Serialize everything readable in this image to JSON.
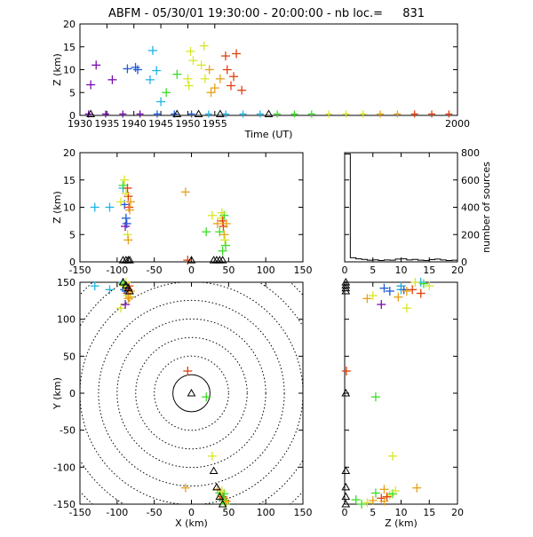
{
  "title": {
    "station": "ABFM",
    "date": "05/30/01",
    "time_range": "19:30:00 - 20:00:00",
    "count_label": "nb loc.=",
    "count": "831"
  },
  "colors": {
    "purple": "#7a0bb0",
    "blue": "#1e5ad8",
    "cyan": "#20b4e6",
    "green": "#3cdc28",
    "yellow": "#d8e628",
    "orange": "#e8a018",
    "red": "#e04010"
  },
  "chart_data": [
    {
      "id": "time_height",
      "type": "scatter",
      "xlabel": "Time (UT)",
      "ylabel": "Z (km)",
      "xlim": [
        1930,
        2000
      ],
      "ylim": [
        0,
        20
      ],
      "xticks": [
        1930,
        1935,
        1940,
        1945,
        1950,
        1955,
        2000
      ],
      "yticks": [
        0,
        5,
        10,
        15,
        20
      ],
      "points": [
        {
          "x": 1932,
          "y": 6.7,
          "c": "purple"
        },
        {
          "x": 1933,
          "y": 11,
          "c": "purple"
        },
        {
          "x": 1936,
          "y": 7.8,
          "c": "purple"
        },
        {
          "x": 1938.8,
          "y": 10.2,
          "c": "blue"
        },
        {
          "x": 1940.3,
          "y": 10.5,
          "c": "blue"
        },
        {
          "x": 1940.7,
          "y": 10,
          "c": "blue"
        },
        {
          "x": 1943,
          "y": 7.8,
          "c": "cyan"
        },
        {
          "x": 1943.5,
          "y": 14.2,
          "c": "cyan"
        },
        {
          "x": 1944.2,
          "y": 9.8,
          "c": "cyan"
        },
        {
          "x": 1945,
          "y": 3,
          "c": "cyan"
        },
        {
          "x": 1946,
          "y": 5,
          "c": "green"
        },
        {
          "x": 1948,
          "y": 9,
          "c": "green"
        },
        {
          "x": 1950,
          "y": 8,
          "c": "yellow"
        },
        {
          "x": 1950.5,
          "y": 14,
          "c": "yellow"
        },
        {
          "x": 1951,
          "y": 12,
          "c": "yellow"
        },
        {
          "x": 1950.2,
          "y": 6.5,
          "c": "yellow"
        },
        {
          "x": 1952.5,
          "y": 11,
          "c": "yellow"
        },
        {
          "x": 1953,
          "y": 15.2,
          "c": "yellow"
        },
        {
          "x": 1953.2,
          "y": 8,
          "c": "yellow"
        },
        {
          "x": 1954,
          "y": 10,
          "c": "orange"
        },
        {
          "x": 1954.3,
          "y": 5,
          "c": "orange"
        },
        {
          "x": 1955,
          "y": 6,
          "c": "orange"
        },
        {
          "x": 1956,
          "y": 8,
          "c": "orange"
        },
        {
          "x": 1957,
          "y": 13,
          "c": "red"
        },
        {
          "x": 1957.3,
          "y": 10,
          "c": "red"
        },
        {
          "x": 1958,
          "y": 6.5,
          "c": "red"
        },
        {
          "x": 1958.5,
          "y": 8.5,
          "c": "red"
        },
        {
          "x": 1959,
          "y": 13.5,
          "c": "red"
        },
        {
          "x": 1960,
          "y": 5.5,
          "c": "red"
        }
      ],
      "ground_colors": [
        "purple",
        "purple",
        "purple",
        "purple",
        "blue",
        "blue",
        "blue",
        "cyan",
        "cyan",
        "cyan",
        "cyan",
        "green",
        "green",
        "green",
        "yellow",
        "yellow",
        "yellow",
        "orange",
        "orange",
        "red",
        "red",
        "red"
      ],
      "triangles_x": [
        1932,
        1948,
        1952,
        1956,
        1965
      ]
    },
    {
      "id": "x_height",
      "type": "scatter",
      "xlim": [
        -150,
        150
      ],
      "ylim": [
        0,
        20
      ],
      "xticks": [
        -150,
        -100,
        -50,
        0,
        50,
        100,
        150
      ],
      "yticks": [
        0,
        5,
        10,
        15,
        20
      ],
      "ylabel": "Z (km)"
    },
    {
      "id": "histogram",
      "type": "bar",
      "xlim": [
        0,
        20
      ],
      "ylim": [
        0,
        800
      ],
      "xticks": [
        0,
        5,
        10,
        15,
        20
      ],
      "yticks": [
        0,
        200,
        400,
        600,
        800
      ],
      "ylabel": "number of sources",
      "values": [
        790,
        30,
        22,
        18,
        12,
        15,
        10,
        14,
        12,
        20,
        22,
        14,
        18,
        12,
        10,
        16,
        20,
        14,
        10,
        12
      ]
    },
    {
      "id": "plan_view",
      "type": "scatter",
      "xlabel": "X (km)",
      "ylabel": "Y (km)",
      "xlim": [
        -150,
        150
      ],
      "ylim": [
        -150,
        150
      ],
      "xticks": [
        -150,
        -100,
        -50,
        0,
        50,
        100,
        150
      ],
      "yticks": [
        -150,
        -100,
        -50,
        0,
        50,
        100,
        150
      ],
      "rings_km": [
        25,
        50,
        75,
        100,
        125,
        150,
        175,
        200
      ]
    },
    {
      "id": "z_y",
      "type": "scatter",
      "xlabel": "Z (km)",
      "xlim": [
        0,
        20
      ],
      "ylim": [
        -150,
        150
      ],
      "xticks": [
        0,
        5,
        10,
        15,
        20
      ],
      "yticks": [
        -150,
        -100,
        -50,
        0,
        50,
        100,
        150
      ]
    }
  ],
  "sources": [
    {
      "x": -110,
      "y": 140,
      "z": 10,
      "c": "cyan"
    },
    {
      "x": -92,
      "y": 150,
      "z": 13.5,
      "c": "cyan"
    },
    {
      "x": -90,
      "y": 140,
      "z": 10.5,
      "c": "blue"
    },
    {
      "x": -88,
      "y": 138,
      "z": 8,
      "c": "blue"
    },
    {
      "x": -87,
      "y": 142,
      "z": 7,
      "c": "blue"
    },
    {
      "x": -86,
      "y": 135,
      "z": 13.5,
      "c": "red"
    },
    {
      "x": -85,
      "y": 140,
      "z": 12,
      "c": "red"
    },
    {
      "x": -84,
      "y": 145,
      "z": 10,
      "c": "red"
    },
    {
      "x": -83,
      "y": 130,
      "z": 9.5,
      "c": "orange"
    },
    {
      "x": -82,
      "y": 138,
      "z": 11,
      "c": "orange"
    },
    {
      "x": -86,
      "y": 132,
      "z": 5,
      "c": "yellow"
    },
    {
      "x": -85,
      "y": 128,
      "z": 4,
      "c": "orange"
    },
    {
      "x": -90,
      "y": 145,
      "z": 15,
      "c": "yellow"
    },
    {
      "x": -88,
      "y": 150,
      "z": 12.5,
      "c": "yellow"
    },
    {
      "x": -92,
      "y": 148,
      "z": 14,
      "c": "green"
    },
    {
      "x": -95,
      "y": 115,
      "z": 11,
      "c": "yellow"
    },
    {
      "x": -130,
      "y": 145,
      "z": 10,
      "c": "cyan"
    },
    {
      "x": -89,
      "y": 120,
      "z": 6.5,
      "c": "purple"
    },
    {
      "x": -5,
      "y": 30,
      "z": 0.3,
      "c": "red"
    },
    {
      "x": -8,
      "y": -128,
      "z": 12.8,
      "c": "orange"
    },
    {
      "x": 20,
      "y": -5,
      "z": 5.5,
      "c": "green"
    },
    {
      "x": 28,
      "y": -85,
      "z": 8.5,
      "c": "yellow"
    },
    {
      "x": 35,
      "y": -130,
      "z": 7,
      "c": "orange"
    },
    {
      "x": 38,
      "y": -135,
      "z": 5.5,
      "c": "green"
    },
    {
      "x": 40,
      "y": -138,
      "z": 8,
      "c": "yellow"
    },
    {
      "x": 42,
      "y": -140,
      "z": 7.5,
      "c": "red"
    },
    {
      "x": 43,
      "y": -142,
      "z": 6.5,
      "c": "red"
    },
    {
      "x": 44,
      "y": -145,
      "z": 5,
      "c": "orange"
    },
    {
      "x": 45,
      "y": -148,
      "z": 4,
      "c": "yellow"
    },
    {
      "x": 46,
      "y": -150,
      "z": 3,
      "c": "green"
    },
    {
      "x": 44,
      "y": -136,
      "z": 8.5,
      "c": "green"
    },
    {
      "x": 41,
      "y": -132,
      "z": 9,
      "c": "yellow"
    },
    {
      "x": 47,
      "y": -146,
      "z": 7,
      "c": "orange"
    },
    {
      "x": 42,
      "y": -144,
      "z": 2,
      "c": "green"
    }
  ],
  "stations": [
    {
      "x": -92,
      "y": 150,
      "z": 0
    },
    {
      "x": -88,
      "y": 146,
      "z": 0
    },
    {
      "x": -85,
      "y": 142,
      "z": 0
    },
    {
      "x": -83,
      "y": 138,
      "z": 0
    },
    {
      "x": 0,
      "y": 0,
      "z": 0
    },
    {
      "x": 30,
      "y": -105,
      "z": 0
    },
    {
      "x": 34,
      "y": -127,
      "z": 0
    },
    {
      "x": 38,
      "y": -140,
      "z": 0
    },
    {
      "x": 42,
      "y": -150,
      "z": 0
    }
  ]
}
